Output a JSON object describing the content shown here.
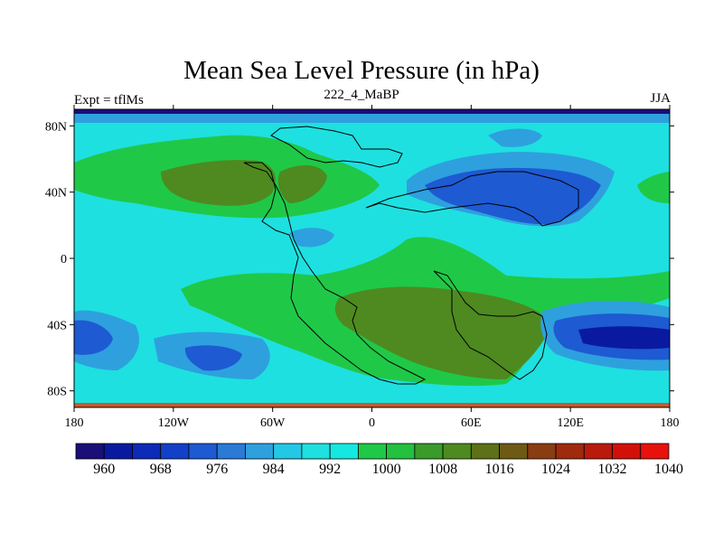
{
  "header": {
    "title": "Mean Sea Level Pressure (in hPa)",
    "subtitle": "222_4_MaBP",
    "left_label": "Expt = tflMs",
    "right_label": "JJA"
  },
  "map": {
    "lon_range": [
      -180,
      180
    ],
    "lat_range": [
      -90,
      90
    ],
    "lon_ticks": [
      {
        "value": -180,
        "label": "180"
      },
      {
        "value": -120,
        "label": "120W"
      },
      {
        "value": -60,
        "label": "60W"
      },
      {
        "value": 0,
        "label": "0"
      },
      {
        "value": 60,
        "label": "60E"
      },
      {
        "value": 120,
        "label": "120E"
      },
      {
        "value": 180,
        "label": "180"
      }
    ],
    "lat_ticks": [
      {
        "value": 80,
        "label": "80N"
      },
      {
        "value": 40,
        "label": "40N"
      },
      {
        "value": 0,
        "label": "0"
      },
      {
        "value": -40,
        "label": "40S"
      },
      {
        "value": -80,
        "label": "80S"
      }
    ],
    "background_level": 1000
  },
  "colorbar": {
    "colors": [
      "#1a0f78",
      "#0a1aa0",
      "#0d2ab8",
      "#1240c8",
      "#1e5ad2",
      "#2a7ad6",
      "#2ea0de",
      "#22c8e6",
      "#1ee0e0",
      "#14e8e0",
      "#20c848",
      "#24c040",
      "#3a9a2a",
      "#4e8a20",
      "#5e7018",
      "#6e5a14",
      "#8a3c12",
      "#a02a0e",
      "#b81a0c",
      "#d2100a",
      "#e8120c"
    ],
    "labels": [
      {
        "after_index": 0,
        "text": "960"
      },
      {
        "after_index": 2,
        "text": "968"
      },
      {
        "after_index": 4,
        "text": "976"
      },
      {
        "after_index": 6,
        "text": "984"
      },
      {
        "after_index": 8,
        "text": "992"
      },
      {
        "after_index": 10,
        "text": "1000"
      },
      {
        "after_index": 12,
        "text": "1008"
      },
      {
        "after_index": 14,
        "text": "1016"
      },
      {
        "after_index": 16,
        "text": "1024"
      },
      {
        "after_index": 18,
        "text": "1032"
      },
      {
        "after_index": 20,
        "text": "1040"
      }
    ]
  },
  "colors": {
    "low_deep": "#0a1aa0",
    "low_mid": "#1e5ad2",
    "low_light": "#2ea0de",
    "base": "#1ee0e0",
    "high_green": "#20c848",
    "high_olive": "#4e8a20",
    "top_band": "#1a0f78",
    "bottom_band": "#c85a2a"
  }
}
